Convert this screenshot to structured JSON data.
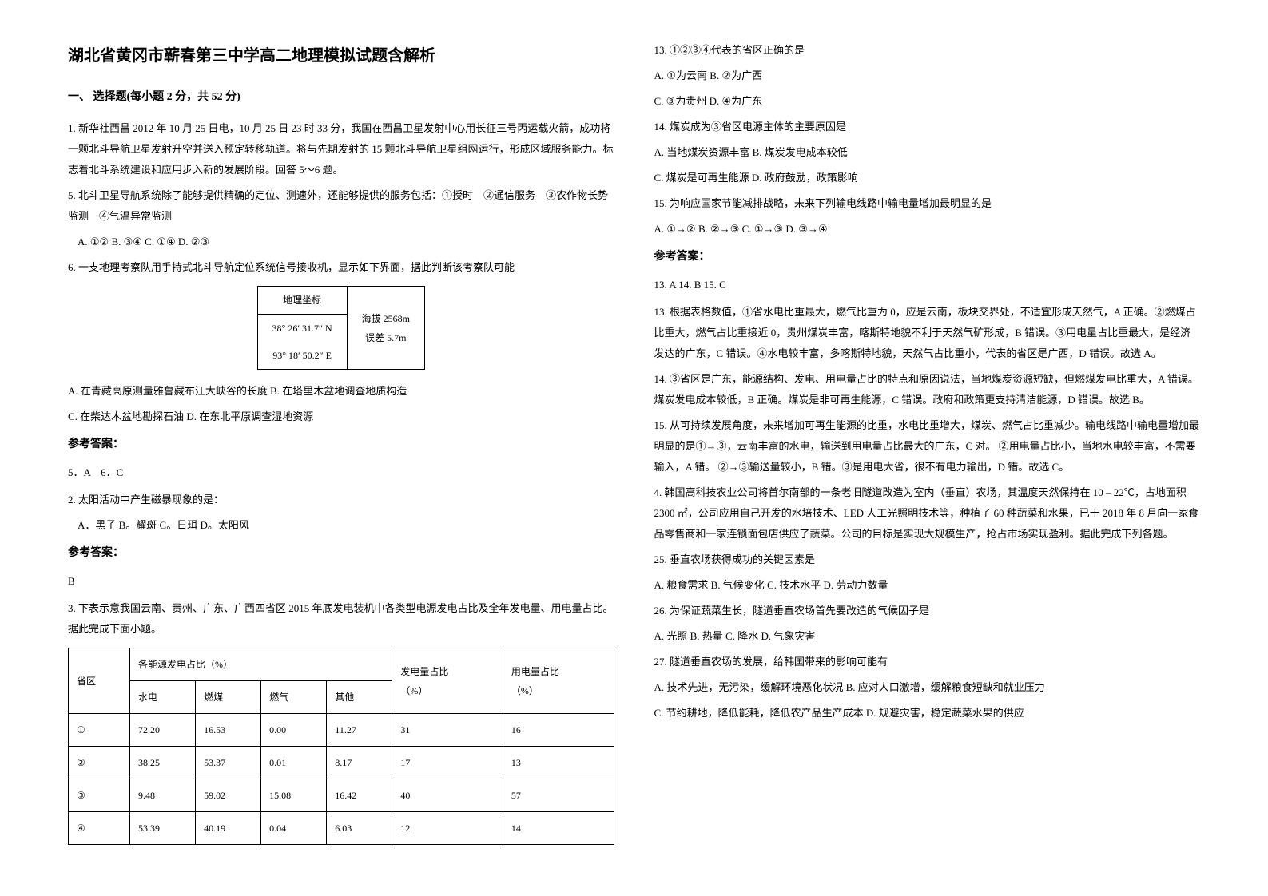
{
  "title": "湖北省黄冈市蕲春第三中学高二地理模拟试题含解析",
  "section1_heading": "一、 选择题(每小题 2 分，共 52 分)",
  "q1_text": "1. 新华社西昌 2012 年 10 月 25 日电，10 月 25 日 23 时 33 分，我国在西昌卫星发射中心用长征三号丙运载火箭，成功将一颗北斗导航卫星发射升空并送入预定转移轨道。将与先期发射的 15 颗北斗导航卫星组网运行，形成区域服务能力。标志着北斗系统建设和应用步入新的发展阶段。回答 5～6 题。",
  "q5_text": "5. 北斗卫星导航系统除了能够提供精确的定位、测速外，还能够提供的服务包括：①授时　②通信服务　③农作物长势监测　④气温异常监测",
  "q5_options": "A. ①②       B. ③④ C. ①④    D. ②③",
  "q6_text": "6. 一支地理考察队用手持式北斗导航定位系统信号接收机，显示如下界面，据此判断该考察队可能",
  "coord_table": {
    "header": "地理坐标",
    "row1": "38° 26′ 31.7″ N",
    "row2": "93° 18′ 50.2″ E",
    "side1": "海拔 2568m",
    "side2": "误差 5.7m"
  },
  "q6_option_a": "A. 在青藏高原测量雅鲁藏布江大峡谷的长度 B. 在塔里木盆地调查地质构造",
  "q6_option_c": "C. 在柴达木盆地勘探石油            D. 在东北平原调查湿地资源",
  "answer_label": "参考答案：",
  "q1_answer": "5．A　6．C",
  "q2_text": "2. 太阳活动中产生磁暴现象的是：",
  "q2_options": "A．黑子           B。耀斑            C。日珥           D。太阳风",
  "q2_answer": "B",
  "q3_text": "3. 下表示意我国云南、贵州、广东、广西四省区 2015 年底发电装机中各类型电源发电占比及全年发电量、用电量占比。据此完成下面小题。",
  "data_table": {
    "headers": [
      "省区",
      "各能源发电占比（%）",
      "发电量占比",
      "用电量占比"
    ],
    "sub_headers": [
      "水电",
      "燃煤",
      "燃气",
      "其他",
      "（%）",
      "（%）"
    ],
    "rows": [
      [
        "①",
        "72.20",
        "16.53",
        "0.00",
        "11.27",
        "31",
        "16"
      ],
      [
        "②",
        "38.25",
        "53.37",
        "0.01",
        "8.17",
        "17",
        "13"
      ],
      [
        "③",
        "9.48",
        "59.02",
        "15.08",
        "16.42",
        "40",
        "57"
      ],
      [
        "④",
        "53.39",
        "40.19",
        "0.04",
        "6.03",
        "12",
        "14"
      ]
    ]
  },
  "q13_text": "13. ①②③④代表的省区正确的是",
  "q13_opt_a": "A. ①为云南  B. ②为广西",
  "q13_opt_c": "C. ③为贵州  D. ④为广东",
  "q14_text": "14. 煤炭成为③省区电源主体的主要原因是",
  "q14_opt_a": "A. 当地煤炭资源丰富 B. 煤炭发电成本较低",
  "q14_opt_c": "C. 煤炭是可再生能源 D. 政府鼓励，政策影响",
  "q15_text": "15. 为响应国家节能减排战略，未来下列输电线路中输电量增加最明显的是",
  "q15_options": "A. ①→②    B. ②→③    C. ①→③    D. ③→④",
  "q3_answers": "13. A      14. B      15. C",
  "explain_13": "13. 根据表格数值，①省水电比重最大，燃气比重为 0，应是云南，板块交界处，不适宜形成天然气，A 正确。②燃煤占比重大，燃气占比重接近 0，贵州煤炭丰富，喀斯特地貌不利于天然气矿形成，B 错误。③用电量占比重最大，是经济发达的广东，C 错误。④水电较丰富，多喀斯特地貌，天然气占比重小，代表的省区是广西，D 错误。故选 A。",
  "explain_14": "14. ③省区是广东，能源结构、发电、用电量占比的特点和原因说法，当地煤炭资源短缺，但燃煤发电比重大，A 错误。煤炭发电成本较低，B 正确。煤炭是非可再生能源，C 错误。政府和政策更支持清洁能源，D 错误。故选 B。",
  "explain_15": "15. 从可持续发展角度，未来增加可再生能源的比重，水电比重增大，煤炭、燃气占比重减少。输电线路中输电量增加最明显的是①→③，云南丰富的水电，输送到用电量占比最大的广东，C 对。 ②用电量占比小，当地水电较丰富，不需要输入，A 错。 ②→③输送量较小，B 错。③是用电大省，很不有电力输出，D 错。故选 C。",
  "q4_text": "4. 韩国高科技农业公司将首尔南部的一条老旧隧道改造为室内（垂直）农场，其温度天然保持在 10 – 22℃，占地面积 2300 ㎡，公司应用自己开发的水培技术、LED 人工光照明技术等，种植了 60 种蔬菜和水果，已于 2018 年 8 月向一家食品零售商和一家连锁面包店供应了蔬菜。公司的目标是实现大规模生产，抢占市场实现盈利。据此完成下列各题。",
  "q25_text": "25. 垂直农场获得成功的关键因素是",
  "q25_options": "A. 粮食需求  B. 气候变化  C. 技术水平  D. 劳动力数量",
  "q26_text": "26. 为保证蔬菜生长，隧道垂直农场首先要改造的气候因子是",
  "q26_options": "A. 光照      B. 热量      C. 降水      D. 气象灾害",
  "q27_text": "27. 隧道垂直农场的发展，给韩国带来的影响可能有",
  "q27_opt_a": "A. 技术先进，无污染，缓解环境恶化状况  B. 应对人口激增，缓解粮食短缺和就业压力",
  "q27_opt_c": "C. 节约耕地，降低能耗，降低农产品生产成本    D. 规避灾害，稳定蔬菜水果的供应"
}
